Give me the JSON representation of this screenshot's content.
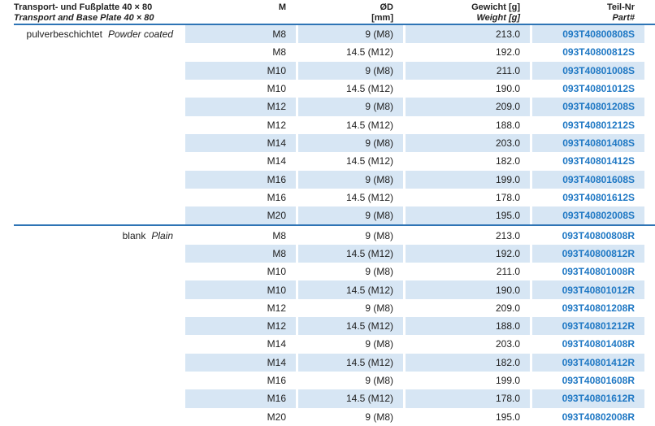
{
  "header": {
    "title_de": "Transport- und Fußplatte 40 × 80",
    "title_en": "Transport and Base Plate 40 × 80",
    "columns": {
      "m": {
        "line1": "M"
      },
      "d": {
        "line1": "ØD",
        "line2": "[mm]"
      },
      "weight": {
        "line1": "Gewicht [g]",
        "line2": "Weight [g]"
      },
      "part": {
        "line1": "Teil-Nr",
        "line2": "Part#"
      }
    }
  },
  "colors": {
    "row_highlight": "#d7e6f4",
    "divider_blue": "#2e74b5",
    "part_number_blue": "#1f78c4"
  },
  "sections": [
    {
      "label_de": "pulverbeschichtet",
      "label_en": "Powder coated",
      "rows": [
        {
          "m": "M8",
          "d": "9 (M8)",
          "weight": "213.0",
          "part": "093T40800808S"
        },
        {
          "m": "M8",
          "d": "14.5 (M12)",
          "weight": "192.0",
          "part": "093T40800812S"
        },
        {
          "m": "M10",
          "d": "9 (M8)",
          "weight": "211.0",
          "part": "093T40801008S"
        },
        {
          "m": "M10",
          "d": "14.5 (M12)",
          "weight": "190.0",
          "part": "093T40801012S"
        },
        {
          "m": "M12",
          "d": "9 (M8)",
          "weight": "209.0",
          "part": "093T40801208S"
        },
        {
          "m": "M12",
          "d": "14.5 (M12)",
          "weight": "188.0",
          "part": "093T40801212S"
        },
        {
          "m": "M14",
          "d": "9 (M8)",
          "weight": "203.0",
          "part": "093T40801408S"
        },
        {
          "m": "M14",
          "d": "14.5 (M12)",
          "weight": "182.0",
          "part": "093T40801412S"
        },
        {
          "m": "M16",
          "d": "9 (M8)",
          "weight": "199.0",
          "part": "093T40801608S"
        },
        {
          "m": "M16",
          "d": "14.5 (M12)",
          "weight": "178.0",
          "part": "093T40801612S"
        },
        {
          "m": "M20",
          "d": "9 (M8)",
          "weight": "195.0",
          "part": "093T40802008S"
        }
      ]
    },
    {
      "label_de": "blank",
      "label_en": "Plain",
      "rows": [
        {
          "m": "M8",
          "d": "9 (M8)",
          "weight": "213.0",
          "part": "093T40800808R"
        },
        {
          "m": "M8",
          "d": "14.5 (M12)",
          "weight": "192.0",
          "part": "093T40800812R"
        },
        {
          "m": "M10",
          "d": "9 (M8)",
          "weight": "211.0",
          "part": "093T40801008R"
        },
        {
          "m": "M10",
          "d": "14.5 (M12)",
          "weight": "190.0",
          "part": "093T40801012R"
        },
        {
          "m": "M12",
          "d": "9 (M8)",
          "weight": "209.0",
          "part": "093T40801208R"
        },
        {
          "m": "M12",
          "d": "14.5 (M12)",
          "weight": "188.0",
          "part": "093T40801212R"
        },
        {
          "m": "M14",
          "d": "9 (M8)",
          "weight": "203.0",
          "part": "093T40801408R"
        },
        {
          "m": "M14",
          "d": "14.5 (M12)",
          "weight": "182.0",
          "part": "093T40801412R"
        },
        {
          "m": "M16",
          "d": "9 (M8)",
          "weight": "199.0",
          "part": "093T40801608R"
        },
        {
          "m": "M16",
          "d": "14.5 (M12)",
          "weight": "178.0",
          "part": "093T40801612R"
        },
        {
          "m": "M20",
          "d": "9 (M8)",
          "weight": "195.0",
          "part": "093T40802008R"
        }
      ]
    }
  ]
}
